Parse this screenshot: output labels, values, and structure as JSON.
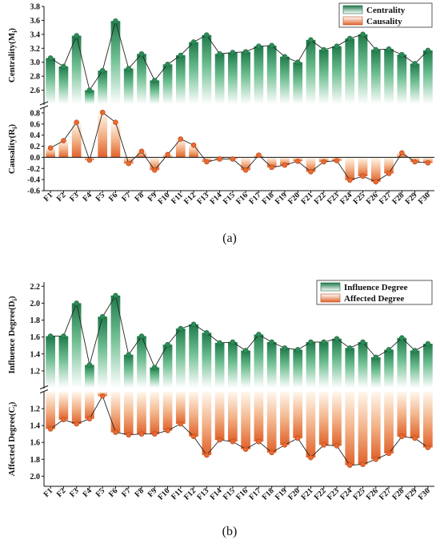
{
  "chart_data": [
    {
      "type": "bar",
      "panel_label": "(a)",
      "categories": [
        "F1",
        "F2",
        "F3",
        "F4",
        "F5",
        "F6",
        "F7",
        "F8",
        "F9",
        "F10",
        "F11",
        "F12",
        "F13",
        "F14",
        "F15",
        "F16",
        "F17",
        "F18",
        "F19",
        "F20",
        "F21",
        "F22",
        "F23",
        "F24",
        "F25",
        "F26",
        "F27",
        "F28",
        "F29",
        "F30"
      ],
      "top": {
        "series_name": "Centrality",
        "ylabel_main": "Centrality(M",
        "ylabel_sub": "i",
        "ylabel_end": ")",
        "ylim": [
          2.4,
          3.8
        ],
        "ticks": [
          "2.6",
          "2.8",
          "3.0",
          "3.2",
          "3.4",
          "3.6",
          "3.8"
        ],
        "values": [
          3.06,
          2.94,
          3.38,
          2.6,
          2.88,
          3.59,
          2.91,
          3.12,
          2.74,
          2.97,
          3.1,
          3.29,
          3.39,
          3.12,
          3.14,
          3.15,
          3.23,
          3.24,
          3.08,
          3.0,
          3.32,
          3.18,
          3.23,
          3.34,
          3.4,
          3.18,
          3.19,
          3.11,
          2.98,
          3.17
        ],
        "color": "#2e8b57"
      },
      "bottom": {
        "series_name": "Causality",
        "ylabel_main": "Causality(R",
        "ylabel_sub": "i",
        "ylabel_end": ")",
        "ylim": [
          -0.6,
          0.9
        ],
        "ticks": [
          "-0.6",
          "-0.4",
          "-0.2",
          "0.0",
          "0.2",
          "0.4",
          "0.6",
          "0.8"
        ],
        "values": [
          0.17,
          0.3,
          0.63,
          -0.05,
          0.81,
          0.63,
          -0.11,
          0.11,
          -0.23,
          0.05,
          0.33,
          0.22,
          -0.08,
          -0.03,
          -0.03,
          -0.23,
          0.04,
          -0.18,
          -0.14,
          -0.07,
          -0.26,
          -0.08,
          -0.06,
          -0.41,
          -0.34,
          -0.44,
          -0.29,
          0.08,
          -0.08,
          -0.1
        ],
        "color": "#e0622a"
      }
    },
    {
      "type": "bar",
      "panel_label": "(b)",
      "categories": [
        "F1",
        "F2",
        "F3",
        "F4",
        "F5",
        "F6",
        "F7",
        "F8",
        "F9",
        "F10",
        "F11",
        "F12",
        "F13",
        "F14",
        "F15",
        "F16",
        "F17",
        "F18",
        "F19",
        "F20",
        "F21",
        "F22",
        "F23",
        "F24",
        "F25",
        "F26",
        "F27",
        "F28",
        "F29",
        "F30"
      ],
      "top": {
        "series_name": "Influence Degree",
        "ylabel_main": "Influence Degree(D",
        "ylabel_sub": "i",
        "ylabel_end": ")",
        "ylim": [
          1.0,
          2.25
        ],
        "ticks": [
          "1.2",
          "1.4",
          "1.6",
          "1.8",
          "2.0",
          "2.2"
        ],
        "values": [
          1.61,
          1.61,
          2.0,
          1.27,
          1.84,
          2.09,
          1.39,
          1.61,
          1.24,
          1.51,
          1.7,
          1.75,
          1.65,
          1.53,
          1.54,
          1.44,
          1.63,
          1.54,
          1.47,
          1.45,
          1.54,
          1.54,
          1.58,
          1.47,
          1.54,
          1.36,
          1.45,
          1.59,
          1.44,
          1.52
        ],
        "color": "#2e8b57"
      },
      "bottom": {
        "series_name": "Affected Degree",
        "ylabel_main": "Affected Degree(C",
        "ylabel_sub": "i",
        "ylabel_end": ")",
        "ylim": [
          1.0,
          2.12
        ],
        "ticks": [
          "1.2",
          "1.4",
          "1.6",
          "1.8",
          "2.0"
        ],
        "values": [
          1.44,
          1.33,
          1.38,
          1.32,
          1.05,
          1.48,
          1.51,
          1.5,
          1.5,
          1.46,
          1.38,
          1.53,
          1.75,
          1.57,
          1.59,
          1.68,
          1.59,
          1.72,
          1.63,
          1.55,
          1.78,
          1.63,
          1.64,
          1.87,
          1.86,
          1.8,
          1.73,
          1.53,
          1.55,
          1.66
        ],
        "color": "#e0622a"
      }
    }
  ]
}
